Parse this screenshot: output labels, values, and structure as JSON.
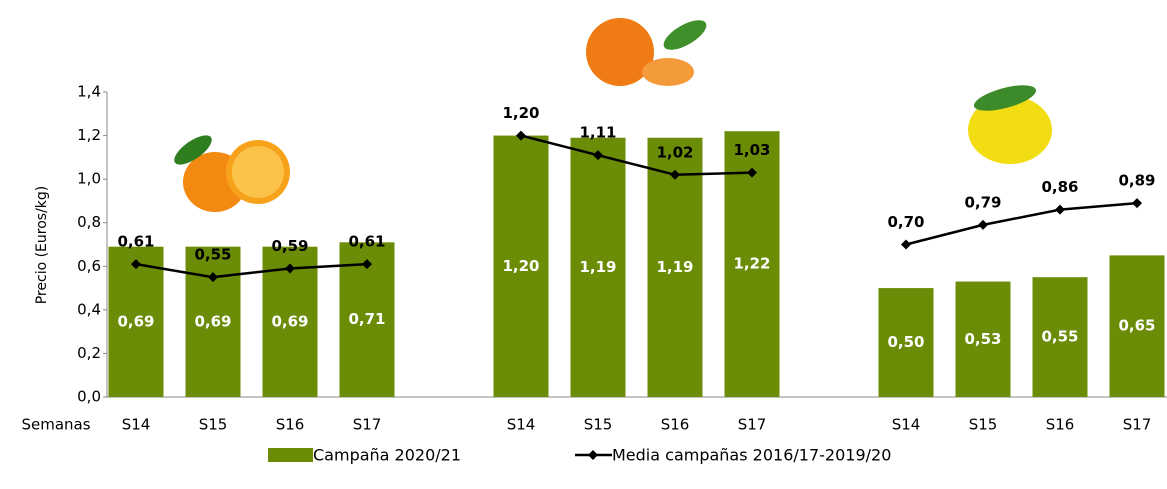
{
  "chart_data": {
    "type": "bar-line",
    "y_label": "Precio (Euros/kg)",
    "x_label": "Semanas",
    "categories": [
      "S14",
      "S15",
      "S16",
      "S17",
      null,
      "S14",
      "S15",
      "S16",
      "S17",
      null,
      "S14",
      "S15",
      "S16",
      "S17"
    ],
    "ylim": [
      0,
      1.4
    ],
    "yticks": [
      {
        "value": 0,
        "label": "0,0"
      },
      {
        "value": 0.2,
        "label": "0,2"
      },
      {
        "value": 0.4,
        "label": "0,4"
      },
      {
        "value": 0.6,
        "label": "0,6"
      },
      {
        "value": 0.8,
        "label": "0,8"
      },
      {
        "value": 1.0,
        "label": "1,0"
      },
      {
        "value": 1.2,
        "label": "1,2"
      },
      {
        "value": 1.4,
        "label": "1,4"
      }
    ],
    "series": [
      {
        "name": "Campaña 2020/21",
        "type": "bar",
        "color": "#6b8c06",
        "values": [
          0.69,
          0.69,
          0.69,
          0.71,
          null,
          1.2,
          1.19,
          1.19,
          1.22,
          null,
          0.5,
          0.53,
          0.55,
          0.65
        ],
        "value_labels": [
          "0,69",
          "0,69",
          "0,69",
          "0,71",
          null,
          "1,20",
          "1,19",
          "1,19",
          "1,22",
          null,
          "0,50",
          "0,53",
          "0,55",
          "0,65"
        ]
      },
      {
        "name": "Media campañas 2016/17-2019/20",
        "type": "line",
        "color": "#000000",
        "values": [
          0.61,
          0.55,
          0.59,
          0.61,
          null,
          1.2,
          1.11,
          1.02,
          1.03,
          null,
          0.7,
          0.79,
          0.86,
          0.89
        ],
        "value_labels": [
          "0,61",
          "0,55",
          "0,59",
          "0,61",
          null,
          "1,20",
          "1,11",
          "1,02",
          "1,03",
          null,
          "0,70",
          "0,79",
          "0,86",
          "0,89"
        ]
      }
    ]
  }
}
